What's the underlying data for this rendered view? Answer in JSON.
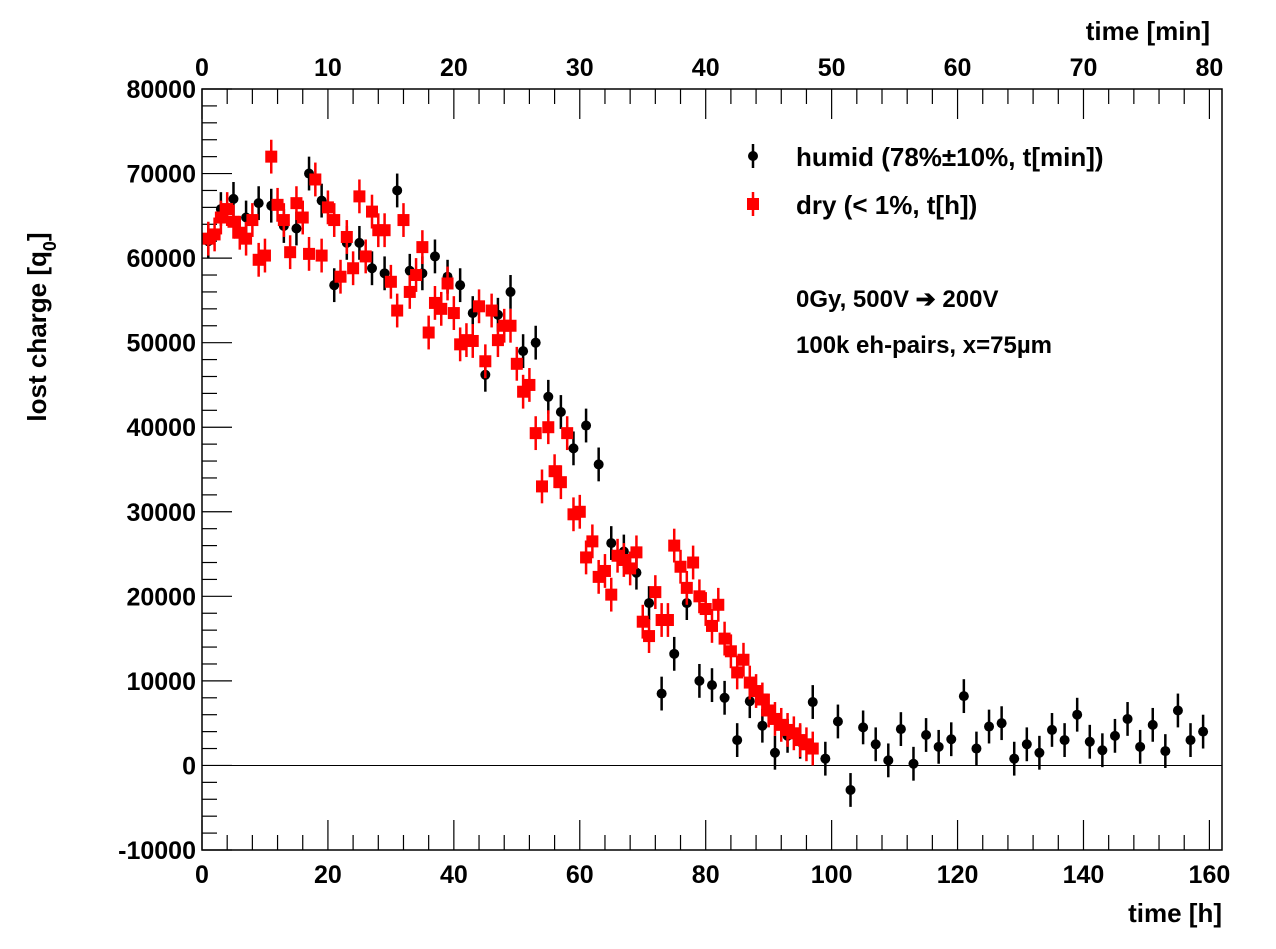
{
  "chart_data": {
    "type": "scatter",
    "xlabel": "time [h]",
    "x2label": "time [min]",
    "ylabel": "lost charge [q",
    "ylabel_sub": "0",
    "ylabel_close": "]",
    "xlim": [
      0,
      162
    ],
    "x2lim": [
      0,
      81
    ],
    "ylim": [
      -10000,
      80000
    ],
    "x_major_ticks": [
      0,
      20,
      40,
      60,
      80,
      100,
      120,
      140,
      160
    ],
    "x_tick_labels": [
      "0",
      "20",
      "40",
      "60",
      "80",
      "100",
      "120",
      "140",
      "160"
    ],
    "x2_major_ticks": [
      0,
      10,
      20,
      30,
      40,
      50,
      60,
      70,
      80
    ],
    "x2_tick_labels": [
      "0",
      "10",
      "20",
      "30",
      "40",
      "50",
      "60",
      "70",
      "80"
    ],
    "y_major_ticks": [
      -10000,
      0,
      10000,
      20000,
      30000,
      40000,
      50000,
      60000,
      70000,
      80000
    ],
    "y_tick_labels": [
      "-10000",
      "0",
      "10000",
      "20000",
      "30000",
      "40000",
      "50000",
      "60000",
      "70000",
      "80000"
    ],
    "zero_line": 0,
    "grid": false,
    "legend_position": "top-right",
    "annotations": [
      "0Gy, 500V ➔ 200V",
      "100k eh-pairs, x=75µm"
    ],
    "series": [
      {
        "name": "humid (78%±10%, t[min])",
        "axis": "top",
        "color": "#000000",
        "marker": "circle",
        "err": 2000,
        "x": [
          0.5,
          1.5,
          2.5,
          3.5,
          4.5,
          5.5,
          6.5,
          7.5,
          8.5,
          9.5,
          10.5,
          11.5,
          12.5,
          13.5,
          14.5,
          15.5,
          16.5,
          17.5,
          18.5,
          19.5,
          20.5,
          21.5,
          22.5,
          23.5,
          24.5,
          25.5,
          26.5,
          27.5,
          28.5,
          29.5,
          30.5,
          31.5,
          32.5,
          33.5,
          34.5,
          35.5,
          36.5,
          37.5,
          38.5,
          39.5,
          40.5,
          41.5,
          42.5,
          43.5,
          44.5,
          45.5,
          46.5,
          47.5,
          48.5,
          49.5,
          50.5,
          51.5,
          52.5,
          53.5,
          54.5,
          55.5,
          56.5,
          57.5,
          58.5,
          59.5,
          60.5,
          61.5,
          62.5,
          63.5,
          64.5,
          65.5,
          66.5,
          67.5,
          68.5,
          69.5,
          70.5,
          71.5,
          72.5,
          73.5,
          74.5,
          75.5,
          76.5,
          77.5,
          78.5,
          79.5
        ],
        "y": [
          62000,
          65800,
          67000,
          64800,
          66500,
          66200,
          63800,
          63500,
          70000,
          66800,
          56800,
          61800,
          61800,
          58800,
          58200,
          68000,
          58500,
          58200,
          60200,
          57800,
          56800,
          53500,
          46200,
          53300,
          56000,
          49000,
          50000,
          43600,
          41800,
          37500,
          40200,
          35600,
          26300,
          25300,
          22800,
          19200,
          8500,
          13200,
          19200,
          10000,
          9500,
          8000,
          3000,
          7600,
          4700,
          1500,
          3500,
          2800,
          7500,
          800,
          5200,
          -2900,
          4500,
          2500,
          600,
          4300,
          200,
          3600,
          2200,
          3100,
          8200,
          2000,
          4600,
          5000,
          800,
          2500,
          1500,
          4200,
          3000,
          6000,
          2800,
          1800,
          3500,
          5500,
          2200,
          4800,
          1700,
          6500,
          3000,
          4000
        ]
      },
      {
        "name": "dry (< 1%, t[h])",
        "axis": "bottom",
        "color": "#ff0000",
        "marker": "square",
        "err": 2000,
        "x": [
          1,
          2,
          3,
          4,
          5,
          6,
          7,
          8,
          9,
          10,
          11,
          12,
          13,
          14,
          15,
          16,
          17,
          18,
          19,
          20,
          21,
          22,
          23,
          24,
          25,
          26,
          27,
          28,
          29,
          30,
          31,
          32,
          33,
          34,
          35,
          36,
          37,
          38,
          39,
          40,
          41,
          42,
          43,
          44,
          45,
          46,
          47,
          48,
          49,
          50,
          51,
          52,
          53,
          54,
          55,
          56,
          57,
          58,
          59,
          60,
          61,
          62,
          63,
          64,
          65,
          66,
          67,
          68,
          69,
          70,
          71,
          72,
          73,
          74,
          75,
          76,
          77,
          78,
          79,
          80,
          81,
          82,
          83,
          84,
          85,
          86,
          87,
          88,
          89,
          90,
          91,
          92,
          93,
          94,
          95,
          96,
          97
        ],
        "y": [
          62300,
          62800,
          64800,
          65800,
          64300,
          63000,
          62300,
          64500,
          59800,
          60300,
          72000,
          66300,
          64500,
          60700,
          66500,
          64800,
          60500,
          69300,
          60300,
          66000,
          64500,
          57800,
          62500,
          58800,
          67300,
          60200,
          65500,
          63300,
          63300,
          57200,
          53800,
          64500,
          56000,
          58000,
          61300,
          51200,
          54700,
          54000,
          57000,
          53500,
          49800,
          50300,
          50200,
          54300,
          47800,
          53800,
          50300,
          52000,
          52000,
          47500,
          44200,
          45000,
          39300,
          33000,
          40000,
          34800,
          33500,
          39300,
          29700,
          30000,
          24600,
          26500,
          22300,
          23000,
          20200,
          24800,
          24300,
          23300,
          25200,
          17000,
          15300,
          20500,
          17200,
          17200,
          26000,
          23500,
          21000,
          24000,
          20000,
          18500,
          16500,
          19000,
          15000,
          13500,
          11000,
          12500,
          9800,
          8800,
          7800,
          6500,
          5500,
          4800,
          4200,
          3800,
          3000,
          2500,
          2000
        ]
      }
    ]
  }
}
